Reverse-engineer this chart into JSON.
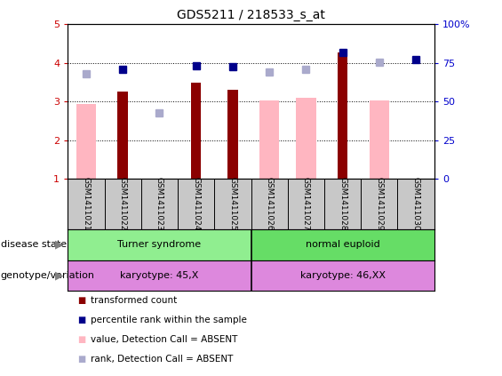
{
  "title": "GDS5211 / 218533_s_at",
  "samples": [
    "GSM1411021",
    "GSM1411022",
    "GSM1411023",
    "GSM1411024",
    "GSM1411025",
    "GSM1411026",
    "GSM1411027",
    "GSM1411028",
    "GSM1411029",
    "GSM1411030"
  ],
  "transformed_count": [
    null,
    3.27,
    null,
    3.5,
    3.3,
    null,
    null,
    4.28,
    null,
    null
  ],
  "percentile_rank": [
    null,
    3.83,
    null,
    3.93,
    3.9,
    null,
    null,
    4.28,
    null,
    4.1
  ],
  "value_absent": [
    2.93,
    null,
    null,
    null,
    null,
    3.03,
    3.1,
    null,
    3.03,
    null
  ],
  "rank_absent": [
    3.73,
    null,
    2.7,
    null,
    null,
    3.77,
    3.83,
    null,
    4.02,
    null
  ],
  "ylim": [
    1,
    5
  ],
  "yticks": [
    1,
    2,
    3,
    4,
    5
  ],
  "y2ticks": [
    0,
    25,
    50,
    75,
    100
  ],
  "y2tick_labels": [
    "0",
    "25",
    "50",
    "75",
    "100%"
  ],
  "bar_color_dark": "#8B0000",
  "bar_color_light": "#FFB6C1",
  "dot_color_dark": "#00008B",
  "dot_color_light": "#AAAACC",
  "axis_label_color": "#CC0000",
  "right_axis_color": "#0000CC",
  "grid_color": "#000000",
  "sample_bg": "#C8C8C8",
  "disease_color": "#90EE90",
  "genotype_color": "#DD88DD",
  "title_fontsize": 10,
  "tick_fontsize": 8,
  "sample_fontsize": 6.5,
  "row_fontsize": 8,
  "legend_fontsize": 7.5
}
